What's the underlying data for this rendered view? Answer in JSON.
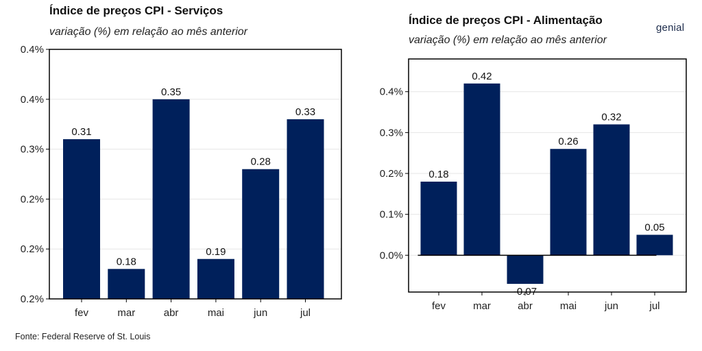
{
  "colors": {
    "bar": "#00205B",
    "grid": "#e6e6e6",
    "axis": "#000000"
  },
  "source": "Fonte: Federal Reserve of St. Louis",
  "logo": "genial",
  "chart_data": [
    {
      "type": "bar",
      "title": "Índice de preços CPI - Serviços",
      "subtitle": "variação (%) em relação ao mês anterior",
      "categories": [
        "fev",
        "mar",
        "abr",
        "mai",
        "jun",
        "jul"
      ],
      "values": [
        0.31,
        0.18,
        0.35,
        0.19,
        0.28,
        0.33
      ],
      "value_labels": [
        "0.31",
        "0.18",
        "0.35",
        "0.19",
        "0.28",
        "0.33"
      ],
      "ylim": [
        0.15,
        0.4
      ],
      "yticks": [
        0.15,
        0.2,
        0.25,
        0.3,
        0.35,
        0.4
      ],
      "ytick_labels": [
        "0.2%",
        "0.2%",
        "0.2%",
        "0.3%",
        "0.4%",
        "0.4%"
      ],
      "grid": true
    },
    {
      "type": "bar",
      "title": "Índice de preços CPI - Alimentação",
      "subtitle": "variação (%) em relação ao mês anterior",
      "categories": [
        "fev",
        "mar",
        "abr",
        "mai",
        "jun",
        "jul"
      ],
      "values": [
        0.18,
        0.42,
        -0.07,
        0.26,
        0.32,
        0.05
      ],
      "value_labels": [
        "0.18",
        "0.42",
        "-0.07",
        "0.26",
        "0.32",
        "0.05"
      ],
      "ylim": [
        -0.09,
        0.48
      ],
      "yticks": [
        0.0,
        0.1,
        0.2,
        0.3,
        0.4
      ],
      "ytick_labels": [
        "0.0%",
        "0.1%",
        "0.2%",
        "0.3%",
        "0.4%"
      ],
      "grid": true
    }
  ]
}
